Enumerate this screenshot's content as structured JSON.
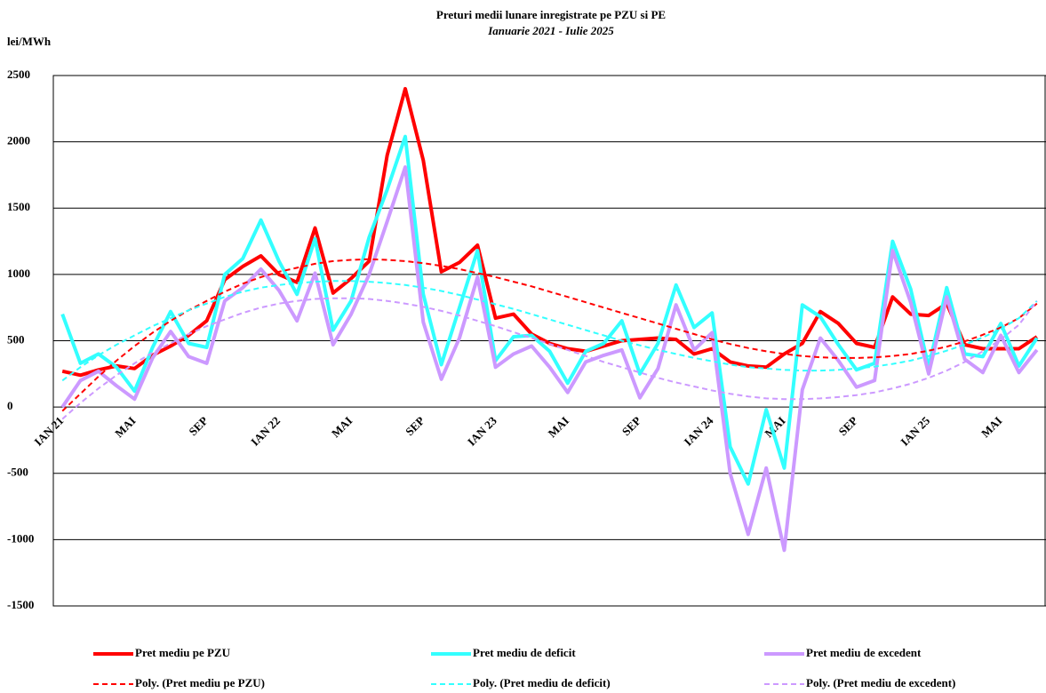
{
  "chart_data": {
    "type": "line",
    "title": "Preturi medii lunare inregistrate pe PZU si PE",
    "subtitle": "Ianuarie 2021 - Iulie 2025",
    "y_label": "lei/MWh",
    "categories": [
      "IAN 21",
      null,
      null,
      null,
      "MAI",
      null,
      null,
      null,
      "SEP",
      null,
      null,
      null,
      "IAN 22",
      null,
      null,
      null,
      "MAI",
      null,
      null,
      null,
      "SEP",
      null,
      null,
      null,
      "IAN 23",
      null,
      null,
      null,
      "MAI",
      null,
      null,
      null,
      "SEP",
      null,
      null,
      null,
      "IAN 24",
      null,
      null,
      null,
      "MAI",
      null,
      null,
      null,
      "SEP",
      null,
      null,
      null,
      "IAN 25",
      null,
      null,
      null,
      "MAI",
      null,
      null
    ],
    "ylim": [
      -1500,
      2500
    ],
    "yticks": [
      -1500,
      -1000,
      -500,
      0,
      500,
      1000,
      1500,
      2000,
      2500
    ],
    "grid": true,
    "legend": "bottom",
    "series": [
      {
        "name": "Pret mediu pe PZU",
        "color": "#ff0000",
        "line_style": "solid",
        "values": [
          270,
          240,
          280,
          310,
          290,
          390,
          460,
          540,
          650,
          960,
          1060,
          1140,
          1000,
          940,
          1350,
          860,
          970,
          1100,
          1900,
          2400,
          1860,
          1020,
          1090,
          1220,
          670,
          700,
          550,
          480,
          440,
          420,
          460,
          500,
          510,
          520,
          510,
          400,
          440,
          340,
          310,
          300,
          400,
          480,
          720,
          630,
          480,
          450,
          830,
          700,
          690,
          780,
          470,
          440,
          440,
          440,
          530
        ]
      },
      {
        "name": "Pret mediu de deficit",
        "color": "#33ffff",
        "line_style": "solid",
        "values": [
          700,
          330,
          400,
          300,
          120,
          450,
          720,
          480,
          450,
          1000,
          1120,
          1410,
          1100,
          850,
          1270,
          580,
          800,
          1280,
          1640,
          2040,
          850,
          320,
          750,
          1180,
          350,
          530,
          540,
          420,
          180,
          420,
          480,
          650,
          250,
          480,
          920,
          600,
          710,
          -300,
          -580,
          -20,
          -460,
          770,
          680,
          470,
          280,
          330,
          1250,
          890,
          300,
          900,
          400,
          380,
          630,
          310,
          520
        ]
      },
      {
        "name": "Pret mediu de excedent",
        "color": "#cc99ff",
        "line_style": "solid",
        "values": [
          0,
          200,
          270,
          160,
          60,
          370,
          570,
          380,
          330,
          800,
          900,
          1040,
          880,
          650,
          1010,
          470,
          700,
          1000,
          1400,
          1810,
          640,
          210,
          520,
          980,
          300,
          400,
          460,
          300,
          110,
          340,
          390,
          430,
          70,
          290,
          770,
          430,
          560,
          -500,
          -960,
          -460,
          -1080,
          130,
          520,
          350,
          150,
          200,
          1180,
          790,
          250,
          830,
          360,
          260,
          540,
          260,
          430
        ]
      },
      {
        "name": "Poly. (Pret mediu pe PZU)",
        "color": "#ff0000",
        "line_style": "dashed",
        "values": [
          -30,
          100,
          230,
          350,
          460,
          560,
          650,
          730,
          800,
          870,
          930,
          980,
          1020,
          1050,
          1080,
          1100,
          1110,
          1115,
          1110,
          1100,
          1085,
          1065,
          1040,
          1010,
          980,
          945,
          910,
          870,
          830,
          790,
          750,
          710,
          670,
          630,
          590,
          550,
          510,
          475,
          445,
          420,
          400,
          385,
          375,
          370,
          370,
          375,
          385,
          400,
          425,
          455,
          495,
          545,
          600,
          670,
          780
        ]
      },
      {
        "name": "Poly. (Pret mediu de deficit)",
        "color": "#33ffff",
        "line_style": "dashed",
        "values": [
          200,
          300,
          390,
          470,
          540,
          610,
          670,
          730,
          780,
          830,
          870,
          900,
          920,
          935,
          945,
          950,
          950,
          945,
          935,
          920,
          900,
          875,
          845,
          810,
          775,
          740,
          700,
          660,
          620,
          580,
          540,
          500,
          465,
          430,
          400,
          370,
          345,
          320,
          300,
          290,
          280,
          275,
          275,
          280,
          290,
          305,
          325,
          350,
          385,
          425,
          470,
          525,
          590,
          670,
          800
        ]
      },
      {
        "name": "Poly. (Pret mediu de excedent)",
        "color": "#cc99ff",
        "line_style": "dashed",
        "values": [
          -90,
          30,
          140,
          240,
          330,
          410,
          480,
          550,
          610,
          660,
          710,
          750,
          780,
          800,
          815,
          820,
          820,
          815,
          800,
          780,
          755,
          725,
          690,
          650,
          610,
          565,
          520,
          475,
          430,
          385,
          340,
          300,
          260,
          220,
          185,
          155,
          125,
          100,
          80,
          65,
          60,
          60,
          65,
          75,
          90,
          110,
          140,
          175,
          220,
          275,
          340,
          420,
          510,
          620,
          800
        ]
      }
    ]
  }
}
